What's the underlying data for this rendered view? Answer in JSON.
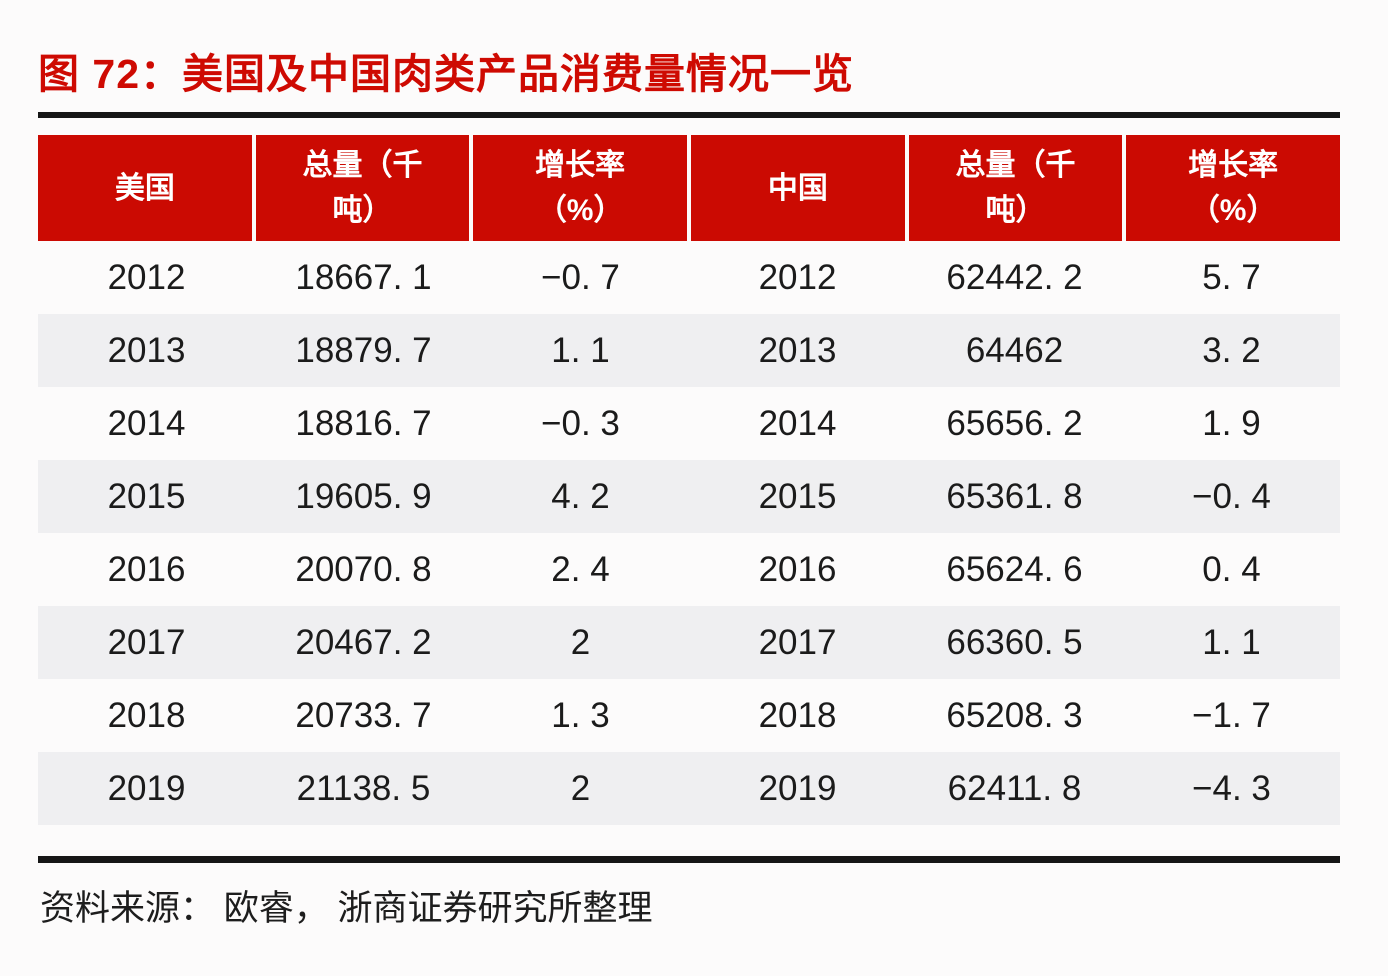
{
  "title": "图 72：美国及中国肉类产品消费量情况一览",
  "source": "资料来源： 欧睿， 浙商证券研究所整理",
  "colors": {
    "accent_red": "#cb0a02",
    "title_red": "#ce0a02",
    "row_alt_gray": "#efeff1",
    "rule_black": "#161616"
  },
  "table": {
    "headers": [
      "美国",
      "总量（千\n吨）",
      "增长率\n（%）",
      "中国",
      "总量（千\n吨）",
      "增长率\n（%）"
    ],
    "rows": [
      [
        "2012",
        "18667. 1",
        "−0. 7",
        "2012",
        "62442. 2",
        "5. 7"
      ],
      [
        "2013",
        "18879. 7",
        "1. 1",
        "2013",
        "64462",
        "3. 2"
      ],
      [
        "2014",
        "18816. 7",
        "−0. 3",
        "2014",
        "65656. 2",
        "1. 9"
      ],
      [
        "2015",
        "19605. 9",
        "4. 2",
        "2015",
        "65361. 8",
        "−0. 4"
      ],
      [
        "2016",
        "20070. 8",
        "2. 4",
        "2016",
        "65624. 6",
        "0. 4"
      ],
      [
        "2017",
        "20467. 2",
        "2",
        "2017",
        "66360. 5",
        "1. 1"
      ],
      [
        "2018",
        "20733. 7",
        "1. 3",
        "2018",
        "65208. 3",
        "−1. 7"
      ],
      [
        "2019",
        "21138. 5",
        "2",
        "2019",
        "62411. 8",
        "−4. 3"
      ]
    ]
  },
  "chart_data": {
    "type": "table",
    "title": "美国及中国肉类产品消费量情况一览",
    "categories": [
      2012,
      2013,
      2014,
      2015,
      2016,
      2017,
      2018,
      2019
    ],
    "series": [
      {
        "name": "美国总量（千吨）",
        "values": [
          18667.1,
          18879.7,
          18816.7,
          19605.9,
          20070.8,
          20467.2,
          20733.7,
          21138.5
        ]
      },
      {
        "name": "美国增长率（%）",
        "values": [
          -0.7,
          1.1,
          -0.3,
          4.2,
          2.4,
          2,
          1.3,
          2
        ]
      },
      {
        "name": "中国总量（千吨）",
        "values": [
          62442.2,
          64462,
          65656.2,
          65361.8,
          65624.6,
          66360.5,
          65208.3,
          62411.8
        ]
      },
      {
        "name": "中国增长率（%）",
        "values": [
          5.7,
          3.2,
          1.9,
          -0.4,
          0.4,
          1.1,
          -1.7,
          -4.3
        ]
      }
    ]
  }
}
